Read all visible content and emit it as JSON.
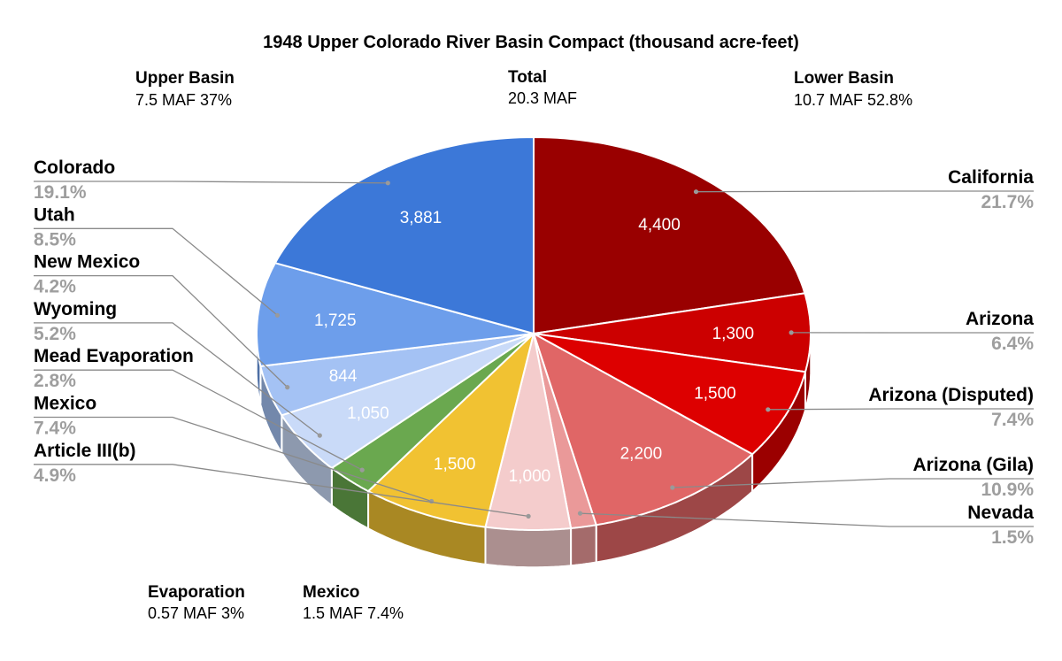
{
  "chart_data": {
    "type": "pie",
    "title": "1948 Upper Colorado River Basin Compact (thousand acre-feet)",
    "summaries": {
      "upper": {
        "label": "Upper Basin",
        "value": "7.5 MAF  37%"
      },
      "total": {
        "label": "Total",
        "value": "20.3 MAF"
      },
      "lower": {
        "label": "Lower Basin",
        "value": "10.7 MAF 52.8%"
      },
      "evaporation": {
        "label": "Evaporation",
        "value": "0.57 MAF 3%"
      },
      "mexico": {
        "label": "Mexico",
        "value": "1.5 MAF  7.4%"
      }
    },
    "slices": [
      {
        "name": "California",
        "value": 4400,
        "value_label": "4,400",
        "percent": "21.7%",
        "color": "#990000",
        "side": "#6b0000"
      },
      {
        "name": "Arizona",
        "value": 1300,
        "value_label": "1,300",
        "percent": "6.4%",
        "color": "#cc0000",
        "side": "#8f0000"
      },
      {
        "name": "Arizona (Disputed)",
        "value": 1500,
        "value_label": "1,500",
        "percent": "7.4%",
        "color": "#dd0000",
        "side": "#9b0000"
      },
      {
        "name": "Arizona (Gila)",
        "value": 2200,
        "value_label": "2,200",
        "percent": "10.9%",
        "color": "#e06666",
        "side": "#9d4747"
      },
      {
        "name": "Nevada",
        "value": 300,
        "value_label": "",
        "percent": "1.5%",
        "color": "#ea9999",
        "side": "#a46b6b"
      },
      {
        "name": "Article III(b)",
        "value": 1000,
        "value_label": "1,000",
        "percent": "4.9%",
        "color": "#f4cccc",
        "side": "#ab8f8f"
      },
      {
        "name": "Mexico",
        "value": 1500,
        "value_label": "1,500",
        "percent": "7.4%",
        "color": "#f1c232",
        "side": "#a98823"
      },
      {
        "name": "Mead Evaporation",
        "value": 570,
        "value_label": "",
        "percent": "2.8%",
        "color": "#6aa84f",
        "side": "#4a7637"
      },
      {
        "name": "Wyoming",
        "value": 1050,
        "value_label": "1,050",
        "percent": "5.2%",
        "color": "#c9daf8",
        "side": "#8d99ae"
      },
      {
        "name": "New Mexico",
        "value": 844,
        "value_label": "844",
        "percent": "4.2%",
        "color": "#a4c2f4",
        "side": "#7388ab"
      },
      {
        "name": "Utah",
        "value": 1725,
        "value_label": "1,725",
        "percent": "8.5%",
        "color": "#6d9eeb",
        "side": "#4d6fa5"
      },
      {
        "name": "Colorado",
        "value": 3881,
        "value_label": "3,881",
        "percent": "19.1%",
        "color": "#3c78d8",
        "side": "#2a5497"
      }
    ]
  }
}
